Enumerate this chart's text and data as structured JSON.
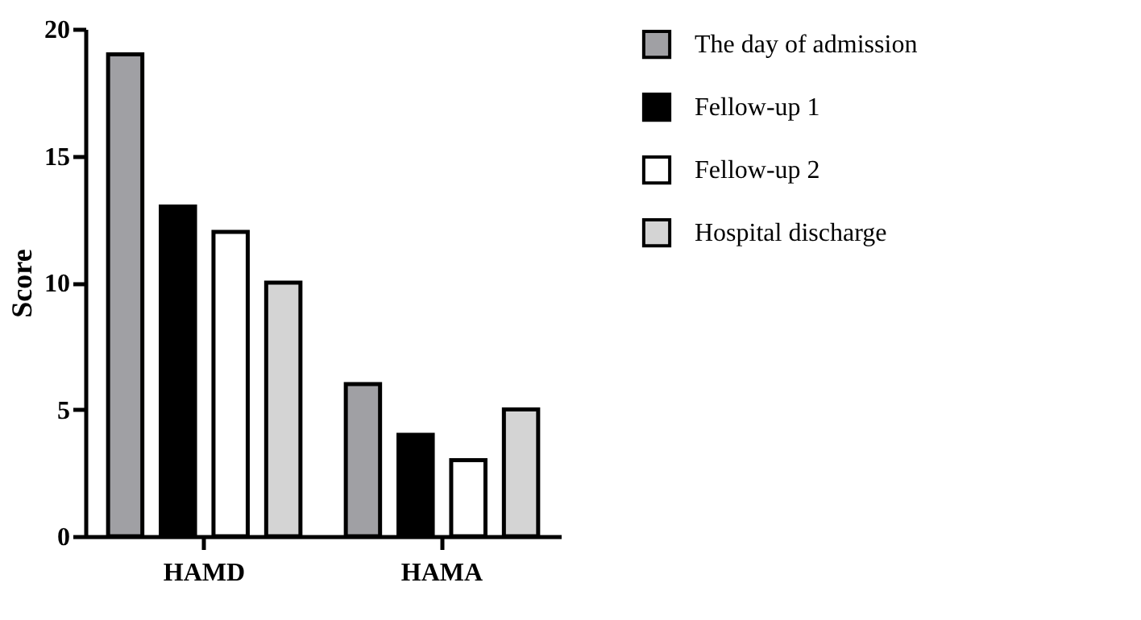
{
  "chart_data": {
    "type": "bar",
    "ylabel": "Score",
    "categories": [
      "HAMD",
      "HAMA"
    ],
    "series": [
      {
        "name": "The day of admission",
        "color": "#a0a0a4",
        "values": [
          19,
          6
        ]
      },
      {
        "name": "Fellow-up 1",
        "color": "#000000",
        "values": [
          13,
          4
        ]
      },
      {
        "name": "Fellow-up 2",
        "color": "#ffffff",
        "values": [
          12,
          3
        ]
      },
      {
        "name": "Hospital discharge",
        "color": "#d4d4d4",
        "values": [
          10,
          5
        ]
      }
    ],
    "ylim": [
      0,
      20
    ],
    "yticks": [
      0,
      5,
      10,
      15,
      20
    ],
    "grid": false,
    "legend": "right"
  }
}
